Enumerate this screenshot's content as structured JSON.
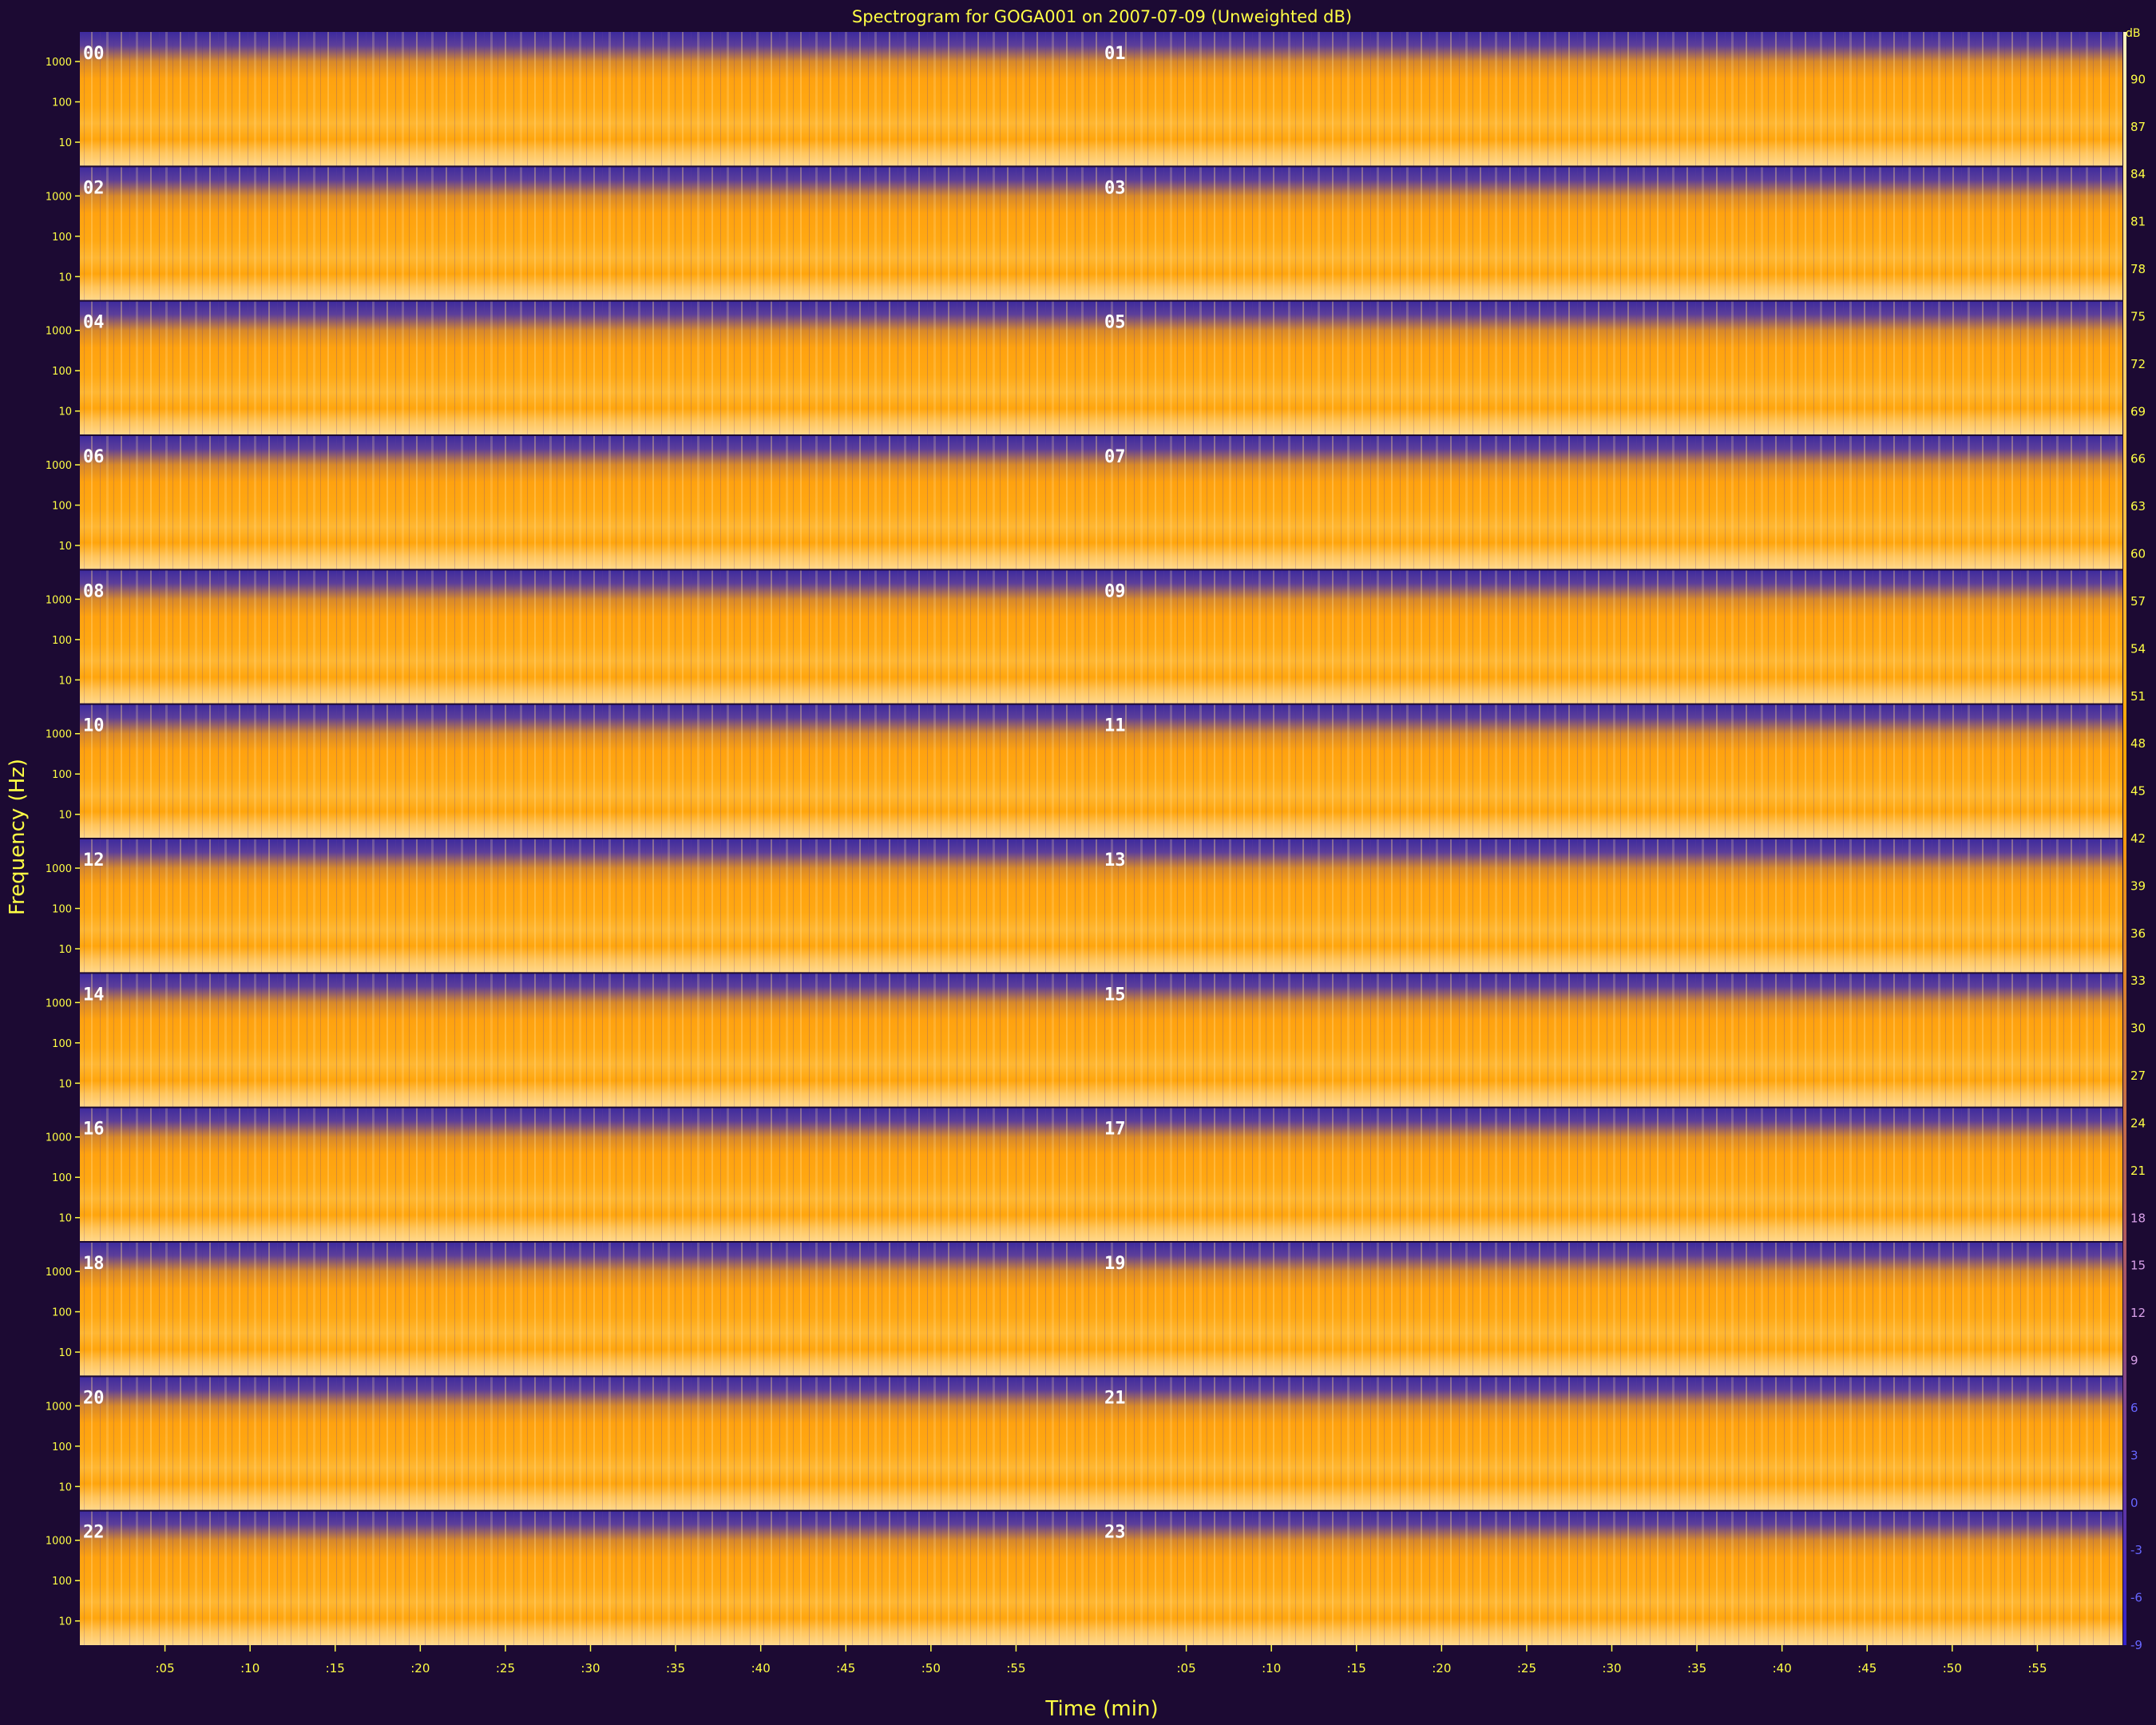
{
  "chart_data": {
    "type": "heatmap",
    "title": "Spectrogram for GOGA001 on 2007-07-09 (Unweighted dB)",
    "xlabel": "Time (min)",
    "ylabel": "Frequency (Hz)",
    "colorbar_unit": "dB",
    "panels": [
      "00",
      "01",
      "02",
      "03",
      "04",
      "05",
      "06",
      "07",
      "08",
      "09",
      "10",
      "11",
      "12",
      "13",
      "14",
      "15",
      "16",
      "17",
      "18",
      "19",
      "20",
      "21",
      "22",
      "23"
    ],
    "y_tick_labels": [
      "1000",
      "100",
      "10"
    ],
    "x_tick_labels": [
      ":05",
      ":10",
      ":15",
      ":20",
      ":25",
      ":30",
      ":35",
      ":40",
      ":45",
      ":50",
      ":55"
    ],
    "colorbar_ticks": [
      90,
      87,
      84,
      81,
      78,
      75,
      72,
      69,
      66,
      63,
      60,
      57,
      54,
      51,
      48,
      45,
      42,
      39,
      36,
      33,
      30,
      27,
      24,
      21,
      18,
      15,
      12,
      9,
      6,
      3,
      0,
      -3,
      -6,
      -9
    ],
    "colorbar_range": [
      -9,
      93
    ],
    "colors": {
      "background": "#1c0a33",
      "low": "#3a2aa0",
      "mid": "#ffa500",
      "high": "#ffd98a",
      "text": "#ffff44"
    }
  }
}
